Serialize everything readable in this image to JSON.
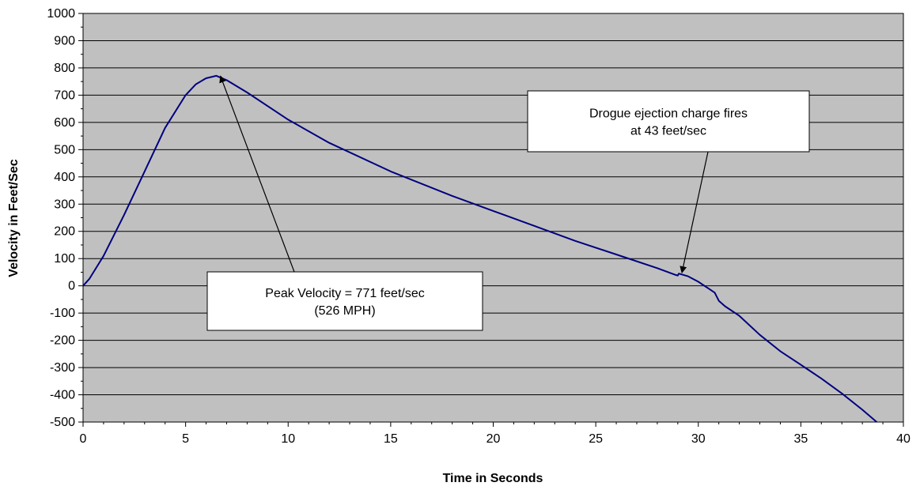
{
  "chart_data": {
    "type": "line",
    "title": "",
    "xlabel": "Time in Seconds",
    "ylabel": "Velocity in Feet/Sec",
    "xlim": [
      0,
      40
    ],
    "ylim": [
      -500,
      1000
    ],
    "x_ticks": [
      0,
      5,
      10,
      15,
      20,
      25,
      30,
      35,
      40
    ],
    "y_ticks": [
      -500,
      -400,
      -300,
      -200,
      -100,
      0,
      100,
      200,
      300,
      400,
      500,
      600,
      700,
      800,
      900,
      1000
    ],
    "grid": "horizontal",
    "legend": "none",
    "colors": {
      "plot_background": "#c0c0c0",
      "series": "#000080",
      "gridline": "#000000"
    },
    "series": [
      {
        "x": [
          0,
          0.3,
          1,
          2,
          3,
          4,
          5,
          5.5,
          6,
          6.5,
          7,
          8,
          10,
          12,
          15,
          18,
          20,
          22,
          24,
          26,
          28,
          28.9,
          29.0,
          29.05,
          29.5,
          30,
          30.5,
          30.8,
          31.0,
          31.3,
          32,
          33,
          34,
          35,
          36,
          37,
          38,
          38.7
        ],
        "y": [
          0,
          25,
          110,
          260,
          420,
          580,
          700,
          740,
          762,
          771,
          755,
          710,
          610,
          525,
          420,
          330,
          275,
          220,
          165,
          115,
          65,
          40,
          38,
          45,
          35,
          15,
          -10,
          -25,
          -55,
          -75,
          -110,
          -180,
          -240,
          -290,
          -340,
          -395,
          -455,
          -500
        ]
      }
    ],
    "annotations": [
      {
        "text_lines": [
          "Peak Velocity = 771 feet/sec",
          "(526 MPH)"
        ],
        "points_to": [
          6.7,
          770
        ]
      },
      {
        "text_lines": [
          "Drogue ejection charge fires",
          "at 43 feet/sec"
        ],
        "points_to": [
          29.2,
          48
        ]
      }
    ]
  }
}
